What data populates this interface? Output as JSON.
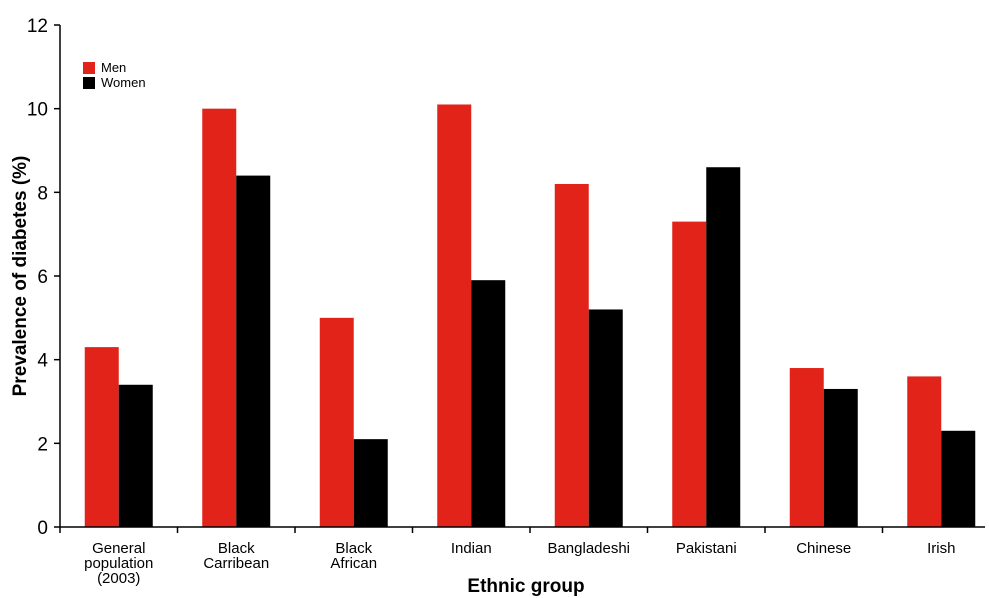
{
  "chart_data": {
    "type": "bar",
    "title": "",
    "xlabel": "Ethnic group",
    "ylabel": "Prevalence of diabetes (%)",
    "ylim": [
      0,
      12
    ],
    "yticks": [
      0,
      2,
      4,
      6,
      8,
      10,
      12
    ],
    "grid": false,
    "legend_position": "top-left",
    "categories": [
      [
        "General",
        "population",
        "(2003)"
      ],
      [
        "Black",
        "Carribean"
      ],
      [
        "Black",
        "African"
      ],
      [
        "Indian"
      ],
      [
        "Bangladeshi"
      ],
      [
        "Pakistani"
      ],
      [
        "Chinese"
      ],
      [
        "Irish"
      ]
    ],
    "series": [
      {
        "name": "Men",
        "color": "#e2231a",
        "values": [
          4.3,
          10.0,
          5.0,
          10.1,
          8.2,
          7.3,
          3.8,
          3.6
        ]
      },
      {
        "name": "Women",
        "color": "#000000",
        "values": [
          3.4,
          8.4,
          2.1,
          5.9,
          5.2,
          8.6,
          3.3,
          2.3
        ]
      }
    ]
  }
}
